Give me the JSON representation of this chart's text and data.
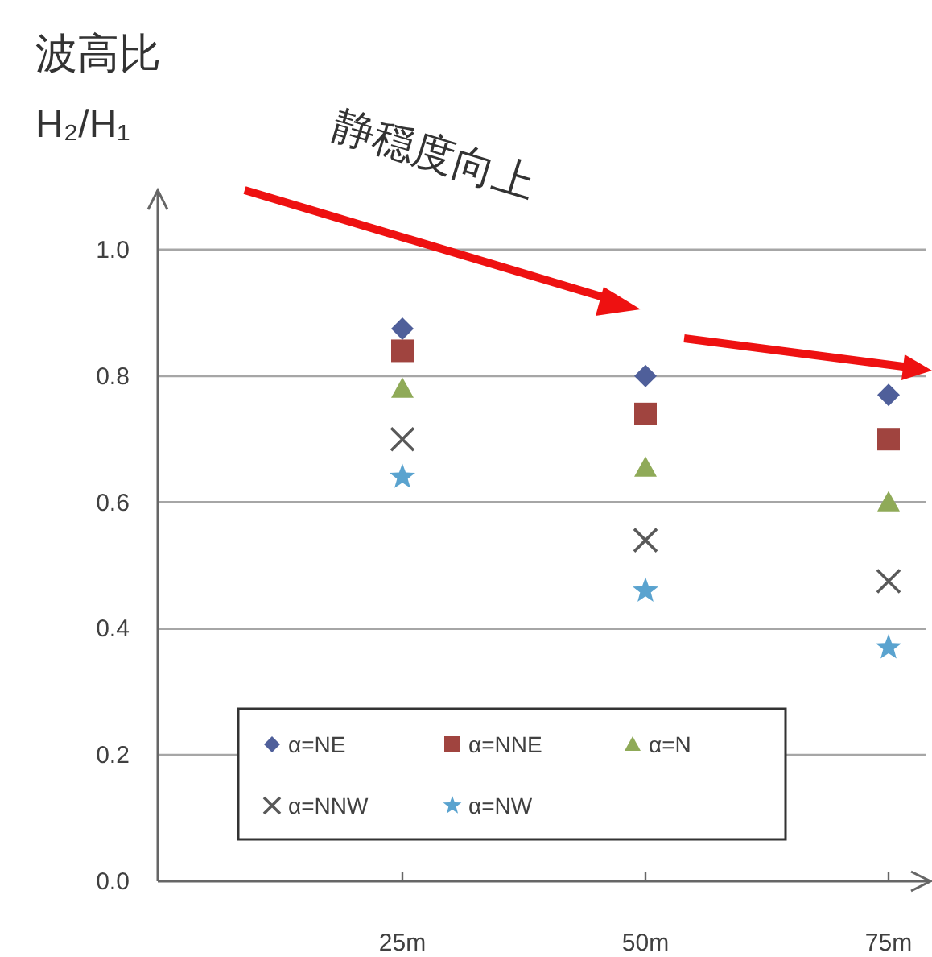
{
  "chart_data": {
    "type": "scatter",
    "title": "波高比",
    "ylabel": "H₂/H₁",
    "categories": [
      "25m",
      "50m",
      "75m"
    ],
    "series": [
      {
        "name": "α=NE",
        "color": "#4f5f9a",
        "marker": "diamond",
        "values": [
          0.875,
          0.8,
          0.77
        ]
      },
      {
        "name": "α=NNE",
        "color": "#a0443f",
        "marker": "square",
        "values": [
          0.84,
          0.74,
          0.7
        ]
      },
      {
        "name": "α=N",
        "color": "#8faa58",
        "marker": "triangle",
        "values": [
          0.78,
          0.655,
          0.6
        ]
      },
      {
        "name": "α=NNW",
        "color": "#595959",
        "marker": "cross",
        "values": [
          0.7,
          0.54,
          0.475
        ]
      },
      {
        "name": "α=NW",
        "color": "#5aa3cf",
        "marker": "star",
        "values": [
          0.64,
          0.46,
          0.37
        ]
      }
    ],
    "ylim": [
      0,
      1.0
    ],
    "yticks": [
      {
        "value": 0,
        "label": "0.0"
      },
      {
        "value": 0.2,
        "label": "0.2"
      },
      {
        "value": 0.4,
        "label": "0.4"
      },
      {
        "value": 0.6,
        "label": "0.6"
      },
      {
        "value": 0.8,
        "label": "0.8"
      },
      {
        "value": 1.0,
        "label": "1.0"
      }
    ],
    "grid": "y",
    "legend": "bottom",
    "annotations": [
      "静穏度向上"
    ]
  }
}
